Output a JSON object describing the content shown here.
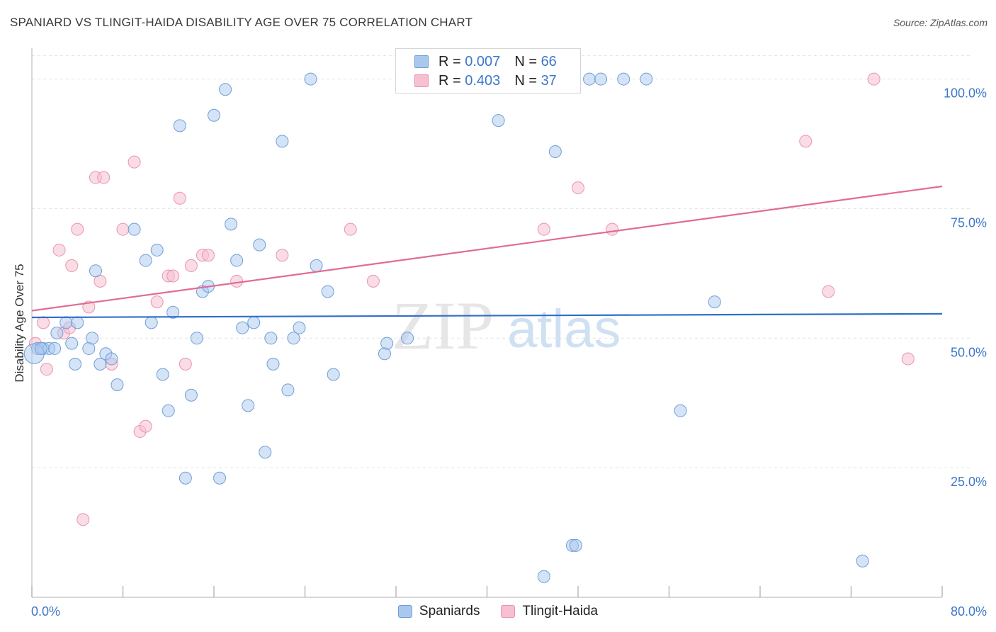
{
  "title": "SPANIARD VS TLINGIT-HAIDA DISABILITY AGE OVER 75 CORRELATION CHART",
  "source": "Source: ZipAtlas.com",
  "watermark": {
    "zip": "ZIP",
    "atlas": "atlas"
  },
  "legend": {
    "rows": [
      {
        "r_label": "R =",
        "r_value": "0.007",
        "n_label": "N =",
        "n_value": "66"
      },
      {
        "r_label": "R =",
        "r_value": "0.403",
        "n_label": "N =",
        "n_value": "37"
      }
    ]
  },
  "bottom_legend": {
    "spaniards": "Spaniards",
    "tlingit": "Tlingit-Haida"
  },
  "colors": {
    "blue_fill": "#aac8ee",
    "blue_stroke": "#6e9fd8",
    "blue_line": "#2f6fc8",
    "pink_fill": "#f6c0d0",
    "pink_stroke": "#e994ae",
    "pink_line": "#e06c94",
    "tick_text": "#3f77c8"
  },
  "chart_data": {
    "type": "scatter",
    "title": "SPANIARD VS TLINGIT-HAIDA DISABILITY AGE OVER 75 CORRELATION CHART",
    "xlabel": "",
    "ylabel": "Disability Age Over 75",
    "xlim": [
      0,
      80
    ],
    "ylim": [
      0,
      105
    ],
    "x_tick_labels": [
      "0.0%",
      "80.0%"
    ],
    "y_ticks": [
      25,
      50,
      75,
      100
    ],
    "y_tick_labels": [
      "25.0%",
      "50.0%",
      "75.0%",
      "100.0%"
    ],
    "series": [
      {
        "name": "Spaniards",
        "r": 0.007,
        "n": 66,
        "trend": {
          "x": [
            0,
            80
          ],
          "y": [
            54.0,
            54.7
          ]
        },
        "points": [
          [
            0.5,
            48
          ],
          [
            1,
            48
          ],
          [
            1.5,
            48
          ],
          [
            2,
            48
          ],
          [
            2.2,
            51
          ],
          [
            3,
            53
          ],
          [
            3.5,
            49
          ],
          [
            3.8,
            45
          ],
          [
            4,
            53
          ],
          [
            5,
            48
          ],
          [
            5.3,
            50
          ],
          [
            5.6,
            63
          ],
          [
            6,
            45
          ],
          [
            6.5,
            47
          ],
          [
            7,
            46
          ],
          [
            7.5,
            41
          ],
          [
            9,
            71
          ],
          [
            10,
            65
          ],
          [
            10.5,
            53
          ],
          [
            11,
            67
          ],
          [
            11.5,
            43
          ],
          [
            12,
            36
          ],
          [
            12.4,
            55
          ],
          [
            13,
            91
          ],
          [
            13.5,
            23
          ],
          [
            14,
            39
          ],
          [
            14.5,
            50
          ],
          [
            15,
            59
          ],
          [
            15.5,
            60
          ],
          [
            16,
            93
          ],
          [
            16.5,
            23
          ],
          [
            17,
            98
          ],
          [
            17.5,
            72
          ],
          [
            18,
            65
          ],
          [
            18.5,
            52
          ],
          [
            19,
            37
          ],
          [
            19.5,
            53
          ],
          [
            20,
            68
          ],
          [
            20.5,
            28
          ],
          [
            21,
            50
          ],
          [
            21.2,
            45
          ],
          [
            22,
            88
          ],
          [
            22.5,
            40
          ],
          [
            23,
            50
          ],
          [
            23.5,
            52
          ],
          [
            24.5,
            100
          ],
          [
            25,
            64
          ],
          [
            26,
            59
          ],
          [
            26.5,
            43
          ],
          [
            31,
            47
          ],
          [
            31.2,
            49
          ],
          [
            33,
            50
          ],
          [
            41,
            92
          ],
          [
            45,
            4
          ],
          [
            46,
            86
          ],
          [
            47.5,
            10
          ],
          [
            47.8,
            10
          ],
          [
            49,
            100
          ],
          [
            50,
            100
          ],
          [
            52,
            100
          ],
          [
            54,
            100
          ],
          [
            57,
            36
          ],
          [
            60,
            57
          ],
          [
            73,
            7
          ],
          [
            0.2,
            47
          ],
          [
            0.8,
            48
          ]
        ]
      },
      {
        "name": "Tlingit-Haida",
        "r": 0.403,
        "n": 37,
        "trend": {
          "x": [
            0,
            80
          ],
          "y": [
            55.3,
            79.3
          ]
        },
        "points": [
          [
            0.3,
            49
          ],
          [
            1,
            53
          ],
          [
            1.3,
            44
          ],
          [
            2.4,
            67
          ],
          [
            2.8,
            51
          ],
          [
            3.3,
            52
          ],
          [
            3.5,
            64
          ],
          [
            4,
            71
          ],
          [
            4.5,
            15
          ],
          [
            5,
            56
          ],
          [
            5.6,
            81
          ],
          [
            6,
            61
          ],
          [
            6.3,
            81
          ],
          [
            7,
            45
          ],
          [
            8,
            71
          ],
          [
            9,
            84
          ],
          [
            9.5,
            32
          ],
          [
            10,
            33
          ],
          [
            11,
            57
          ],
          [
            12,
            62
          ],
          [
            12.4,
            62
          ],
          [
            13,
            77
          ],
          [
            13.5,
            45
          ],
          [
            14,
            64
          ],
          [
            15,
            66
          ],
          [
            15.5,
            66
          ],
          [
            18,
            61
          ],
          [
            22,
            66
          ],
          [
            28,
            71
          ],
          [
            30,
            61
          ],
          [
            45,
            71
          ],
          [
            48,
            79
          ],
          [
            51,
            71
          ],
          [
            68,
            88
          ],
          [
            70,
            59
          ],
          [
            74,
            100
          ],
          [
            77,
            46
          ]
        ]
      }
    ]
  }
}
